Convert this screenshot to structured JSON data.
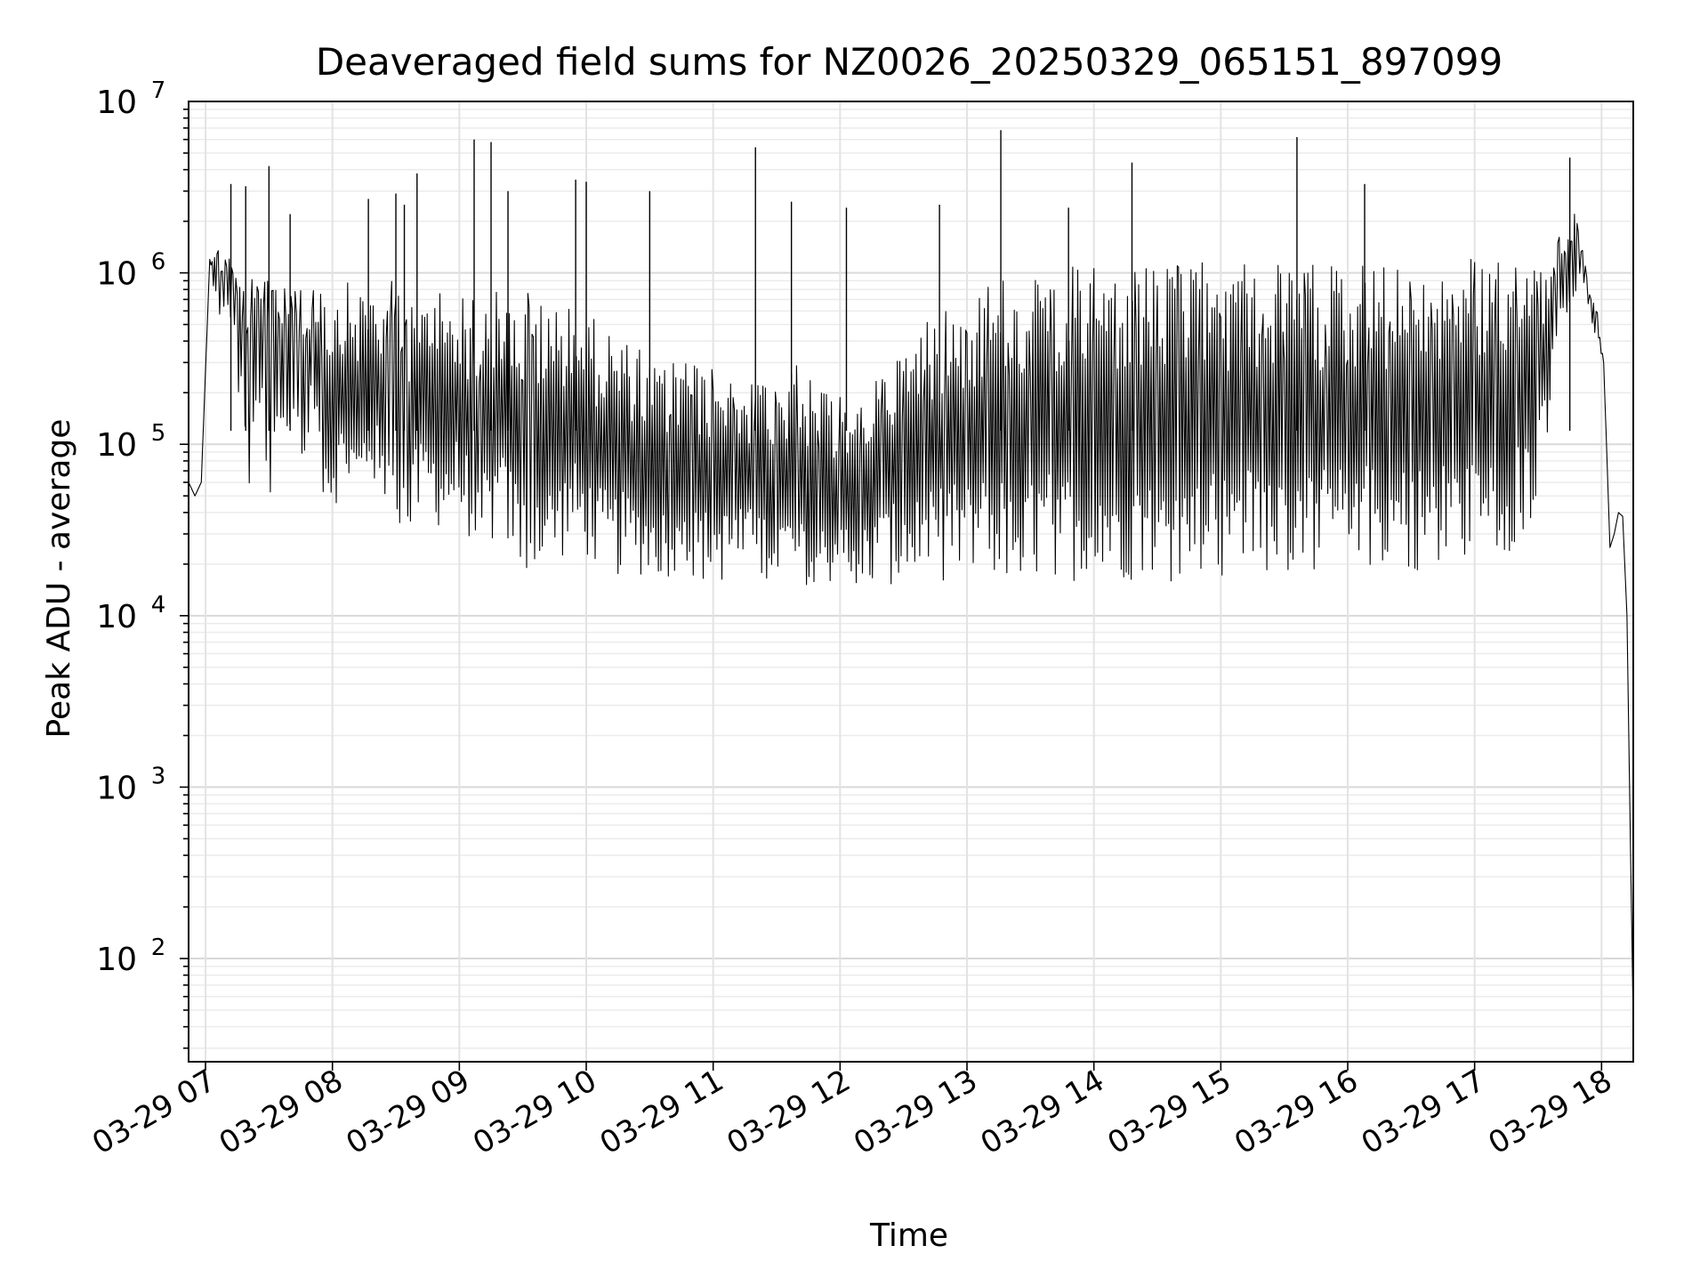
{
  "chart_data": {
    "type": "line",
    "title": "Deaveraged field sums for NZ0026_20250329_065151_897099",
    "xlabel": "Time",
    "ylabel": "Peak ADU - average",
    "y_scale": "log",
    "ylim": [
      25,
      10000000
    ],
    "xlim": [
      "2025-03-29 06:52",
      "2025-03-29 18:15"
    ],
    "x_ticks": [
      {
        "value": "2025-03-29 07:00",
        "label": "03-29 07"
      },
      {
        "value": "2025-03-29 08:00",
        "label": "03-29 08"
      },
      {
        "value": "2025-03-29 09:00",
        "label": "03-29 09"
      },
      {
        "value": "2025-03-29 10:00",
        "label": "03-29 10"
      },
      {
        "value": "2025-03-29 11:00",
        "label": "03-29 11"
      },
      {
        "value": "2025-03-29 12:00",
        "label": "03-29 12"
      },
      {
        "value": "2025-03-29 13:00",
        "label": "03-29 13"
      },
      {
        "value": "2025-03-29 14:00",
        "label": "03-29 14"
      },
      {
        "value": "2025-03-29 15:00",
        "label": "03-29 15"
      },
      {
        "value": "2025-03-29 16:00",
        "label": "03-29 16"
      },
      {
        "value": "2025-03-29 17:00",
        "label": "03-29 17"
      },
      {
        "value": "2025-03-29 18:00",
        "label": "03-29 18"
      }
    ],
    "y_ticks": [
      {
        "value": 100,
        "base": "10",
        "exp": "2"
      },
      {
        "value": 1000,
        "base": "10",
        "exp": "3"
      },
      {
        "value": 10000,
        "base": "10",
        "exp": "4"
      },
      {
        "value": 100000,
        "base": "10",
        "exp": "5"
      },
      {
        "value": 1000000,
        "base": "10",
        "exp": "6"
      },
      {
        "value": 10000000,
        "base": "10",
        "exp": "7"
      }
    ],
    "grid": true,
    "line_color": "#000000",
    "series": [
      {
        "x": [
          "2025-03-29 06:52",
          "2025-03-29 06:55",
          "2025-03-29 06:58",
          "2025-03-29 07:02",
          "2025-03-29 07:06",
          "2025-03-29 07:08",
          "2025-03-29 07:10",
          "2025-03-29 07:13",
          "2025-03-29 07:15",
          "2025-03-29 07:18",
          "2025-03-29 07:20",
          "2025-03-29 07:22",
          "2025-03-29 07:25",
          "2025-03-29 07:28",
          "2025-03-29 07:30",
          "2025-03-29 07:32",
          "2025-03-29 07:35",
          "2025-03-29 07:38",
          "2025-03-29 07:41",
          "2025-03-29 07:43",
          "2025-03-29 07:45",
          "2025-03-29 07:48",
          "2025-03-29 07:51",
          "2025-03-29 07:55",
          "2025-03-29 08:00",
          "2025-03-29 08:06",
          "2025-03-29 08:12",
          "2025-03-29 08:18",
          "2025-03-29 08:23",
          "2025-03-29 08:26",
          "2025-03-29 08:28",
          "2025-03-29 08:30",
          "2025-03-29 08:33",
          "2025-03-29 08:35",
          "2025-03-29 08:40",
          "2025-03-29 08:46",
          "2025-03-29 08:52",
          "2025-03-29 08:58",
          "2025-03-29 09:04",
          "2025-03-29 09:07",
          "2025-03-29 09:10",
          "2025-03-29 09:15",
          "2025-03-29 09:20",
          "2025-03-29 09:26",
          "2025-03-29 09:30",
          "2025-03-29 09:33",
          "2025-03-29 09:35",
          "2025-03-29 09:41",
          "2025-03-29 09:47",
          "2025-03-29 09:53",
          "2025-03-29 10:00",
          "2025-03-29 10:06",
          "2025-03-29 10:12",
          "2025-03-29 10:18",
          "2025-03-29 10:24",
          "2025-03-29 10:30",
          "2025-03-29 10:40",
          "2025-03-29 10:50",
          "2025-03-29 11:00",
          "2025-03-29 11:10",
          "2025-03-29 11:20",
          "2025-03-29 11:30",
          "2025-03-29 11:40",
          "2025-03-29 11:50",
          "2025-03-29 12:00",
          "2025-03-29 12:10",
          "2025-03-29 12:20",
          "2025-03-29 12:30",
          "2025-03-29 12:40",
          "2025-03-29 12:50",
          "2025-03-29 13:00",
          "2025-03-29 13:10",
          "2025-03-29 13:20",
          "2025-03-29 13:30",
          "2025-03-29 13:40",
          "2025-03-29 13:50",
          "2025-03-29 14:00",
          "2025-03-29 14:10",
          "2025-03-29 14:20",
          "2025-03-29 14:30",
          "2025-03-29 14:40",
          "2025-03-29 14:50",
          "2025-03-29 15:00",
          "2025-03-29 15:10",
          "2025-03-29 15:20",
          "2025-03-29 15:30",
          "2025-03-29 15:40",
          "2025-03-29 15:50",
          "2025-03-29 16:00",
          "2025-03-29 16:10",
          "2025-03-29 16:20",
          "2025-03-29 16:30",
          "2025-03-29 16:40",
          "2025-03-29 16:50",
          "2025-03-29 17:00",
          "2025-03-29 17:10",
          "2025-03-29 17:20",
          "2025-03-29 17:30",
          "2025-03-29 17:35",
          "2025-03-29 17:38",
          "2025-03-29 17:40",
          "2025-03-29 17:43",
          "2025-03-29 17:46",
          "2025-03-29 17:49",
          "2025-03-29 17:51",
          "2025-03-29 17:53",
          "2025-03-29 17:55",
          "2025-03-29 17:58",
          "2025-03-29 18:01",
          "2025-03-29 18:04",
          "2025-03-29 18:06",
          "2025-03-29 18:08",
          "2025-03-29 18:10",
          "2025-03-29 18:12",
          "2025-03-29 18:15"
        ],
        "y_low": [
          60000,
          50000,
          60000,
          1200000,
          500000,
          500000,
          700000,
          400000,
          200000,
          100000,
          50000,
          60000,
          150000,
          80000,
          40000,
          90000,
          60000,
          100000,
          60000,
          80000,
          40000,
          90000,
          120000,
          50000,
          40000,
          60000,
          40000,
          70000,
          40000,
          25000,
          30000,
          40000,
          25000,
          20000,
          35000,
          40000,
          30000,
          40000,
          30000,
          22000,
          20000,
          25000,
          30000,
          20000,
          16000,
          15000,
          20000,
          18000,
          20000,
          25000,
          22000,
          18000,
          16000,
          18000,
          17000,
          17000,
          16000,
          16000,
          15000,
          17000,
          17000,
          16000,
          15000,
          14000,
          16000,
          15000,
          15000,
          15000,
          15000,
          16000,
          16000,
          17000,
          15000,
          16000,
          17000,
          16000,
          16000,
          16000,
          16000,
          15000,
          16000,
          17000,
          16000,
          18000,
          18000,
          18000,
          18000,
          17000,
          19000,
          18000,
          18000,
          18000,
          19000,
          19000,
          20000,
          22000,
          25000,
          40000,
          100000,
          300000,
          500000,
          600000,
          500000,
          800000,
          900000,
          700000,
          500000,
          400000,
          300000,
          25000,
          30000,
          40000,
          38000,
          10000,
          40
        ],
        "y_high": [
          60000,
          50000,
          60000,
          1200000,
          1500000,
          1400000,
          1300000,
          1200000,
          1200000,
          1000000,
          1000000,
          1000000,
          1000000,
          900000,
          1100000,
          1000000,
          900000,
          800000,
          1000000,
          900000,
          800000,
          800000,
          900000,
          800000,
          800000,
          900000,
          800000,
          900000,
          800000,
          700000,
          900000,
          800000,
          900000,
          700000,
          700000,
          800000,
          900000,
          800000,
          700000,
          900000,
          800000,
          900000,
          700000,
          800000,
          700000,
          900000,
          800000,
          600000,
          700000,
          800000,
          600000,
          500000,
          500000,
          400000,
          400000,
          300000,
          300000,
          300000,
          300000,
          250000,
          250000,
          250000,
          300000,
          200000,
          200000,
          200000,
          300000,
          400000,
          500000,
          700000,
          800000,
          900000,
          1000000,
          1000000,
          1100000,
          1100000,
          1100000,
          1100000,
          1100000,
          1100000,
          1100000,
          1200000,
          1100000,
          1200000,
          1100000,
          1200000,
          1100000,
          1200000,
          1100000,
          1200000,
          1100000,
          1200000,
          1200000,
          1200000,
          1200000,
          1300000,
          1300000,
          1400000,
          1400000,
          1500000,
          1700000,
          1800000,
          2500000,
          2000000,
          1500000,
          1000000,
          800000,
          600000,
          300000,
          25000,
          30000,
          40000,
          38000,
          10000,
          40
        ],
        "spikes": [
          {
            "x": "2025-03-29 07:12",
            "y": 3300000
          },
          {
            "x": "2025-03-29 07:19",
            "y": 3200000
          },
          {
            "x": "2025-03-29 07:30",
            "y": 4200000
          },
          {
            "x": "2025-03-29 07:40",
            "y": 2200000
          },
          {
            "x": "2025-03-29 08:17",
            "y": 2700000
          },
          {
            "x": "2025-03-29 08:30",
            "y": 2900000
          },
          {
            "x": "2025-03-29 08:34",
            "y": 2500000
          },
          {
            "x": "2025-03-29 08:40",
            "y": 3800000
          },
          {
            "x": "2025-03-29 09:07",
            "y": 6000000
          },
          {
            "x": "2025-03-29 09:15",
            "y": 5800000
          },
          {
            "x": "2025-03-29 09:23",
            "y": 3000000
          },
          {
            "x": "2025-03-29 09:55",
            "y": 3500000
          },
          {
            "x": "2025-03-29 10:00",
            "y": 3400000
          },
          {
            "x": "2025-03-29 10:30",
            "y": 3000000
          },
          {
            "x": "2025-03-29 11:20",
            "y": 5400000
          },
          {
            "x": "2025-03-29 11:37",
            "y": 2600000
          },
          {
            "x": "2025-03-29 12:03",
            "y": 2400000
          },
          {
            "x": "2025-03-29 12:47",
            "y": 2500000
          },
          {
            "x": "2025-03-29 13:16",
            "y": 6800000
          },
          {
            "x": "2025-03-29 13:48",
            "y": 2400000
          },
          {
            "x": "2025-03-29 14:18",
            "y": 4400000
          },
          {
            "x": "2025-03-29 15:36",
            "y": 6200000
          },
          {
            "x": "2025-03-29 16:08",
            "y": 3300000
          },
          {
            "x": "2025-03-29 17:45",
            "y": 4700000
          }
        ]
      }
    ]
  }
}
